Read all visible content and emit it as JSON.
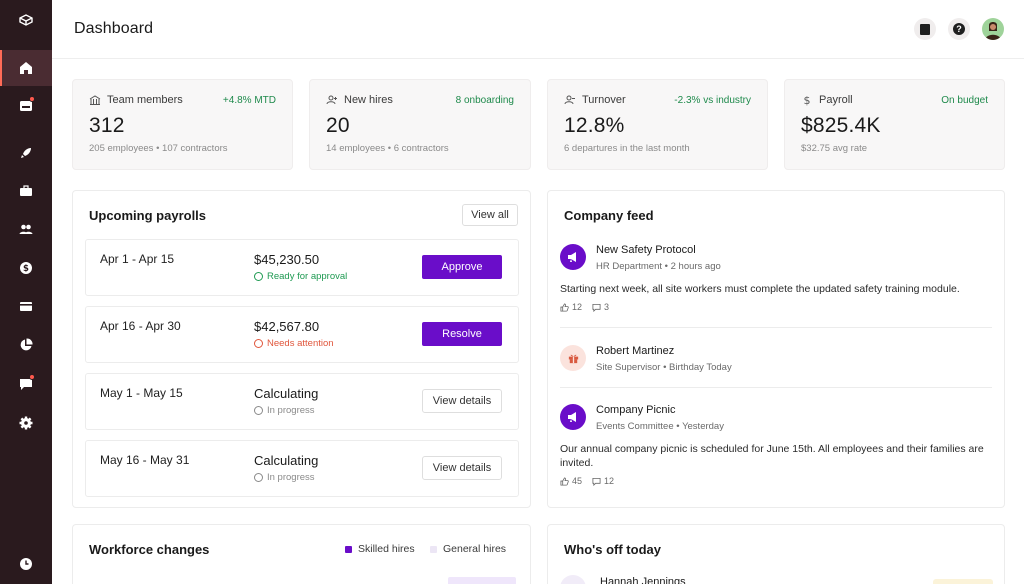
{
  "header": {
    "title": "Dashboard"
  },
  "stats": [
    {
      "label": "Team members",
      "delta": "+4.8% MTD",
      "value": "312",
      "sub": "205 employees • 107 contractors"
    },
    {
      "label": "New hires",
      "delta": "8 onboarding",
      "value": "20",
      "sub": "14 employees • 6 contractors"
    },
    {
      "label": "Turnover",
      "delta": "-2.3% vs industry",
      "value": "12.8%",
      "sub": "6 departures in the last month"
    },
    {
      "label": "Payroll",
      "delta": "On budget",
      "value": "$825.4K",
      "sub": "$32.75 avg rate"
    }
  ],
  "payrolls": {
    "title": "Upcoming payrolls",
    "view_all": "View all",
    "rows": [
      {
        "range": "Apr 1 - Apr 15",
        "amount": "$45,230.50",
        "status": "Ready for approval",
        "action": "Approve"
      },
      {
        "range": "Apr 16 - Apr 30",
        "amount": "$42,567.80",
        "status": "Needs attention",
        "action": "Resolve"
      },
      {
        "range": "May 1 - May 15",
        "amount": "Calculating",
        "status": "In progress",
        "action": "View details"
      },
      {
        "range": "May 16 - May 31",
        "amount": "Calculating",
        "status": "In progress",
        "action": "View details"
      }
    ]
  },
  "feed": {
    "title": "Company feed",
    "items": [
      {
        "title": "New Safety Protocol",
        "source": "HR Department",
        "time": "2 hours ago",
        "body": "Starting next week, all site workers must complete the updated safety training module.",
        "likes": "12",
        "comments": "3"
      },
      {
        "title": "Robert Martinez",
        "source": "Site Supervisor",
        "time": "Birthday Today"
      },
      {
        "title": "Company Picnic",
        "source": "Events Committee",
        "time": "Yesterday",
        "body": "Our annual company picnic is scheduled for June 15th. All employees and their families are invited.",
        "likes": "45",
        "comments": "12"
      }
    ]
  },
  "workforce": {
    "title": "Workforce changes",
    "legend": [
      {
        "label": "Skilled hires",
        "color": "#6a0dc9"
      },
      {
        "label": "General hires",
        "color": "#ece6f5"
      }
    ]
  },
  "off_today": {
    "title": "Who's off today",
    "first_name": "Hannah Jennings"
  },
  "sep": "•",
  "colors": {
    "accent": "#6a0dc9",
    "sidebar": "#2a1a1e",
    "positive": "#1f9a52",
    "warning": "#e0563c"
  }
}
